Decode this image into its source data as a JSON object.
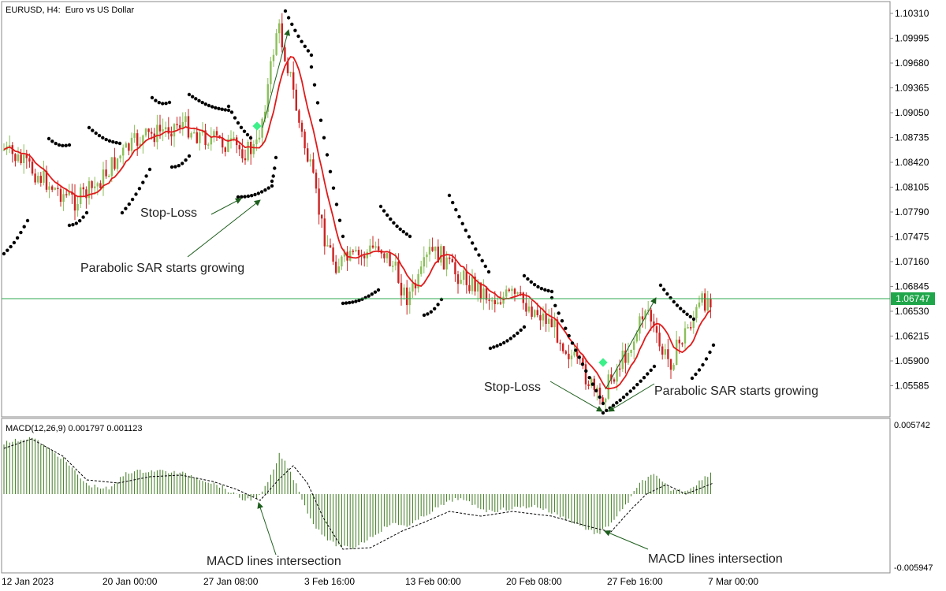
{
  "header": {
    "symbol": "EURUSD, H4:",
    "description": "Euro vs US Dollar"
  },
  "price_axis": {
    "labels": [
      "1.10310",
      "1.09995",
      "1.09680",
      "1.09365",
      "1.09050",
      "1.08735",
      "1.08420",
      "1.08105",
      "1.07790",
      "1.07475",
      "1.07160",
      "1.06845",
      "1.06530",
      "1.06215",
      "1.05900",
      "1.05585"
    ],
    "current_price": "1.06747",
    "current_price_color": "#1fa64a"
  },
  "time_axis": {
    "labels": [
      "12 Jan 2023",
      "20 Jan 00:00",
      "27 Jan 08:00",
      "3 Feb 16:00",
      "13 Feb 00:00",
      "20 Feb 08:00",
      "27 Feb 16:00",
      "7 Mar 00:00"
    ]
  },
  "macd": {
    "title": "MACD(12,26,9) 0.001797 0.001123",
    "axis_max": "0.005742",
    "axis_min": "-0.005947"
  },
  "annotations": {
    "stop_loss_1": "Stop-Loss",
    "sar_growing_1": "Parabolic SAR starts growing",
    "stop_loss_2": "Stop-Loss",
    "sar_growing_2": "Parabolic SAR starts growing",
    "macd_cross_1": "MACD lines intersection",
    "macd_cross_2": "MACD lines intersection"
  },
  "colors": {
    "bull_candle": "#8bbf5a",
    "bear_candle": "#cc2222",
    "moving_average": "#e01b1b",
    "parabolic_sar": "#000000",
    "macd_histogram": "#3d7a1e",
    "signal_marker": "#3cf08a",
    "arrow": "#1e5e1e"
  },
  "chart_data": {
    "type": "candlestick",
    "price_range": [
      1.0543,
      1.1045
    ],
    "price_key_points": [
      {
        "time": "12 Jan 2023",
        "price": 1.0855
      },
      {
        "time": "20 Jan 00:00",
        "price": 1.0842
      },
      {
        "time": "27 Jan 08:00",
        "price": 1.0865
      },
      {
        "time": "3 Feb 16:00",
        "price": 1.082
      },
      {
        "time": "13 Feb 00:00",
        "price": 1.073
      },
      {
        "time": "20 Feb 08:00",
        "price": 1.07
      },
      {
        "time": "27 Feb 16:00",
        "price": 1.0565
      },
      {
        "time": "7 Mar 00:00",
        "price": 1.0675
      }
    ],
    "macd_range": [
      -0.005947,
      0.005742
    ],
    "macd_main": 0.001797,
    "macd_signal": 0.001123
  }
}
